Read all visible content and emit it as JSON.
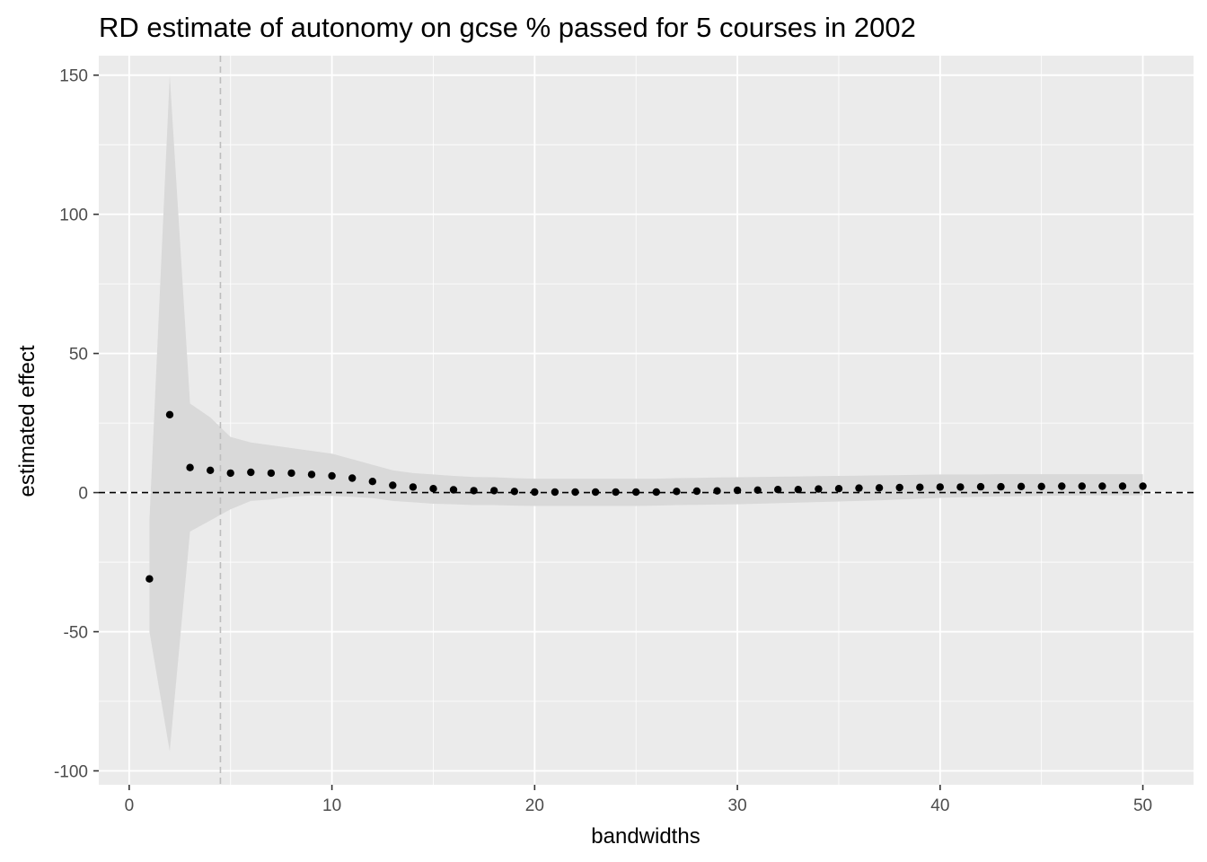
{
  "chart_data": {
    "type": "scatter",
    "title": "RD estimate of autonomy on gcse % passed for 5 courses in 2002",
    "xlabel": "bandwidths",
    "ylabel": "estimated effect",
    "xlim": [
      -1.5,
      52.5
    ],
    "ylim": [
      -105,
      157
    ],
    "xticks": [
      0,
      10,
      20,
      30,
      40,
      50
    ],
    "yticks": [
      -100,
      -50,
      0,
      50,
      100,
      150
    ],
    "grid": true,
    "hline": 0,
    "vline": 4.5,
    "colors": {
      "panel": "#ebebeb",
      "ribbon": "#d9d9d9",
      "points": "#000000",
      "grid": "#ffffff"
    },
    "x": [
      1,
      2,
      3,
      4,
      5,
      6,
      7,
      8,
      9,
      10,
      11,
      12,
      13,
      14,
      15,
      16,
      17,
      18,
      19,
      20,
      21,
      22,
      23,
      24,
      25,
      26,
      27,
      28,
      29,
      30,
      31,
      32,
      33,
      34,
      35,
      36,
      37,
      38,
      39,
      40,
      41,
      42,
      43,
      44,
      45,
      46,
      47,
      48,
      49,
      50
    ],
    "y": [
      -31,
      28,
      9,
      8,
      7,
      7.3,
      7,
      7,
      6.5,
      6,
      5.2,
      4,
      2.6,
      2,
      1.4,
      1,
      0.7,
      0.7,
      0.4,
      0.2,
      0.2,
      0.2,
      0.2,
      0.2,
      0.2,
      0.2,
      0.4,
      0.5,
      0.6,
      0.8,
      0.9,
      1.1,
      1.1,
      1.3,
      1.4,
      1.6,
      1.7,
      1.8,
      1.9,
      2,
      2,
      2.1,
      2.1,
      2.2,
      2.2,
      2.3,
      2.3,
      2.3,
      2.3,
      2.3
    ],
    "lower": [
      -50,
      -93,
      -14,
      -10,
      -6,
      -3,
      -2.5,
      -1.5,
      -1,
      -1.2,
      -1.5,
      -2,
      -3,
      -3.5,
      -4,
      -4.2,
      -4.5,
      -4.5,
      -4.7,
      -4.8,
      -4.8,
      -4.8,
      -4.8,
      -4.8,
      -4.8,
      -4.7,
      -4.5,
      -4.4,
      -4.3,
      -4.2,
      -4,
      -3.8,
      -3.6,
      -3.4,
      -3.2,
      -3,
      -2.8,
      -2.5,
      -2.2,
      -1.9,
      -1.7,
      -1.5,
      -1.4,
      -1.3,
      -1.2,
      -1.1,
      -1,
      -1,
      -1,
      -1
    ],
    "upper": [
      -10,
      150,
      32,
      27,
      20,
      18,
      17,
      16,
      15,
      14,
      12,
      10,
      8,
      7,
      6.5,
      6,
      5.6,
      5.5,
      5.2,
      5,
      5,
      5,
      5,
      5,
      5,
      5,
      5.2,
      5.3,
      5.4,
      5.5,
      5.6,
      5.7,
      5.8,
      5.9,
      6,
      6.1,
      6.2,
      6.3,
      6.4,
      6.5,
      6.5,
      6.5,
      6.6,
      6.6,
      6.6,
      6.6,
      6.6,
      6.6,
      6.6,
      6.6
    ]
  }
}
